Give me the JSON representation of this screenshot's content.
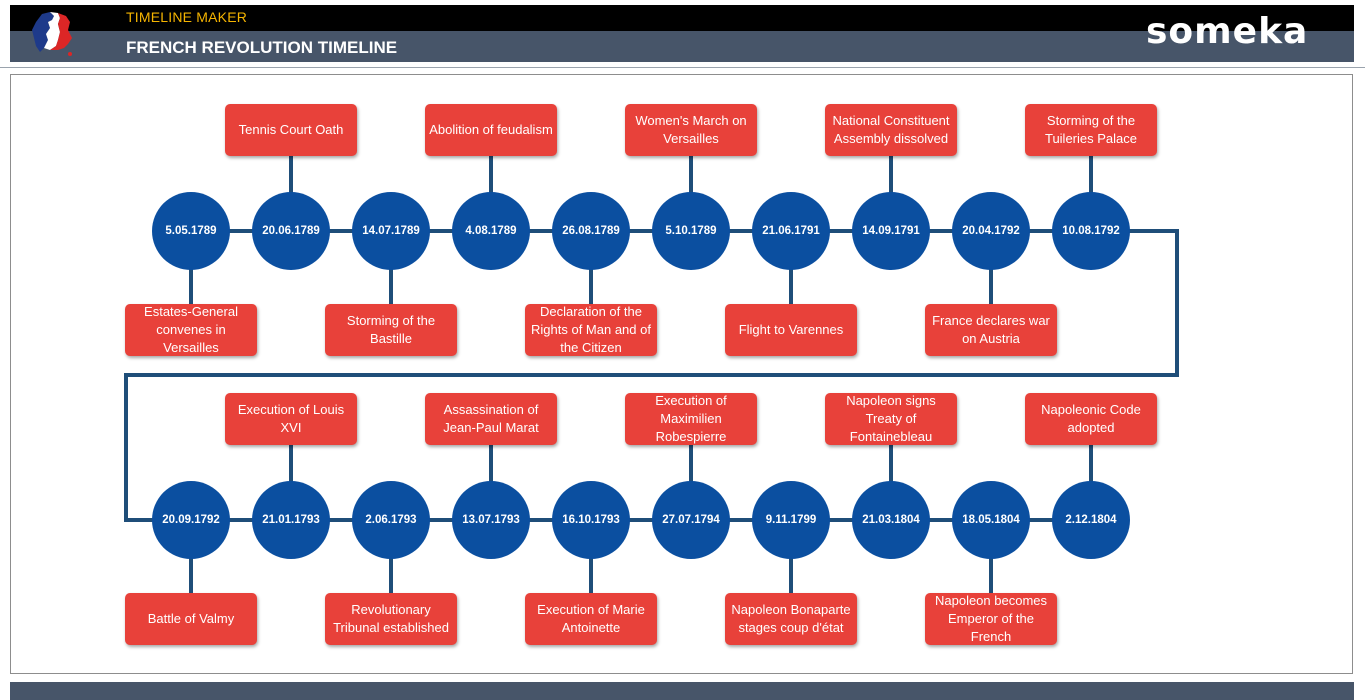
{
  "header": {
    "app_title": "TIMELINE MAKER",
    "page_title": "FRENCH REVOLUTION TIMELINE",
    "brand": "someka",
    "logo_icon": "france-map-flag-icon"
  },
  "colors": {
    "header_black": "#000000",
    "header_slate": "#475569",
    "app_title": "#f5b400",
    "event_box": "#e8413a",
    "date_node": "#0b4fa0",
    "connector": "#1f4e79"
  },
  "rows": [
    {
      "events": [
        {
          "date": "5.05.1789",
          "label": "Estates-General convenes in Versailles",
          "side": "bottom"
        },
        {
          "date": "20.06.1789",
          "label": "Tennis Court Oath",
          "side": "top"
        },
        {
          "date": "14.07.1789",
          "label": "Storming of the Bastille",
          "side": "bottom"
        },
        {
          "date": "4.08.1789",
          "label": "Abolition of feudalism",
          "side": "top"
        },
        {
          "date": "26.08.1789",
          "label": "Declaration of the Rights of Man and of the Citizen",
          "side": "bottom"
        },
        {
          "date": "5.10.1789",
          "label": "Women's March on Versailles",
          "side": "top"
        },
        {
          "date": "21.06.1791",
          "label": "Flight to Varennes",
          "side": "bottom"
        },
        {
          "date": "14.09.1791",
          "label": "National Constituent Assembly dissolved",
          "side": "top"
        },
        {
          "date": "20.04.1792",
          "label": "France declares war on Austria",
          "side": "bottom"
        },
        {
          "date": "10.08.1792",
          "label": "Storming of the Tuileries Palace",
          "side": "top"
        }
      ]
    },
    {
      "events": [
        {
          "date": "20.09.1792",
          "label": "Battle of Valmy",
          "side": "bottom"
        },
        {
          "date": "21.01.1793",
          "label": "Execution of Louis XVI",
          "side": "top"
        },
        {
          "date": "2.06.1793",
          "label": "Revolutionary Tribunal established",
          "side": "bottom"
        },
        {
          "date": "13.07.1793",
          "label": "Assassination of Jean-Paul Marat",
          "side": "top"
        },
        {
          "date": "16.10.1793",
          "label": "Execution of Marie Antoinette",
          "side": "bottom"
        },
        {
          "date": "27.07.1794",
          "label": "Execution of Maximilien Robespierre",
          "side": "top"
        },
        {
          "date": "9.11.1799",
          "label": "Napoleon Bonaparte stages coup d'état",
          "side": "bottom"
        },
        {
          "date": "21.03.1804",
          "label": "Napoleon signs Treaty of Fontainebleau",
          "side": "top"
        },
        {
          "date": "18.05.1804",
          "label": "Napoleon becomes Emperor of the French",
          "side": "bottom"
        },
        {
          "date": "2.12.1804",
          "label": "Napoleonic Code adopted",
          "side": "top"
        }
      ]
    }
  ]
}
